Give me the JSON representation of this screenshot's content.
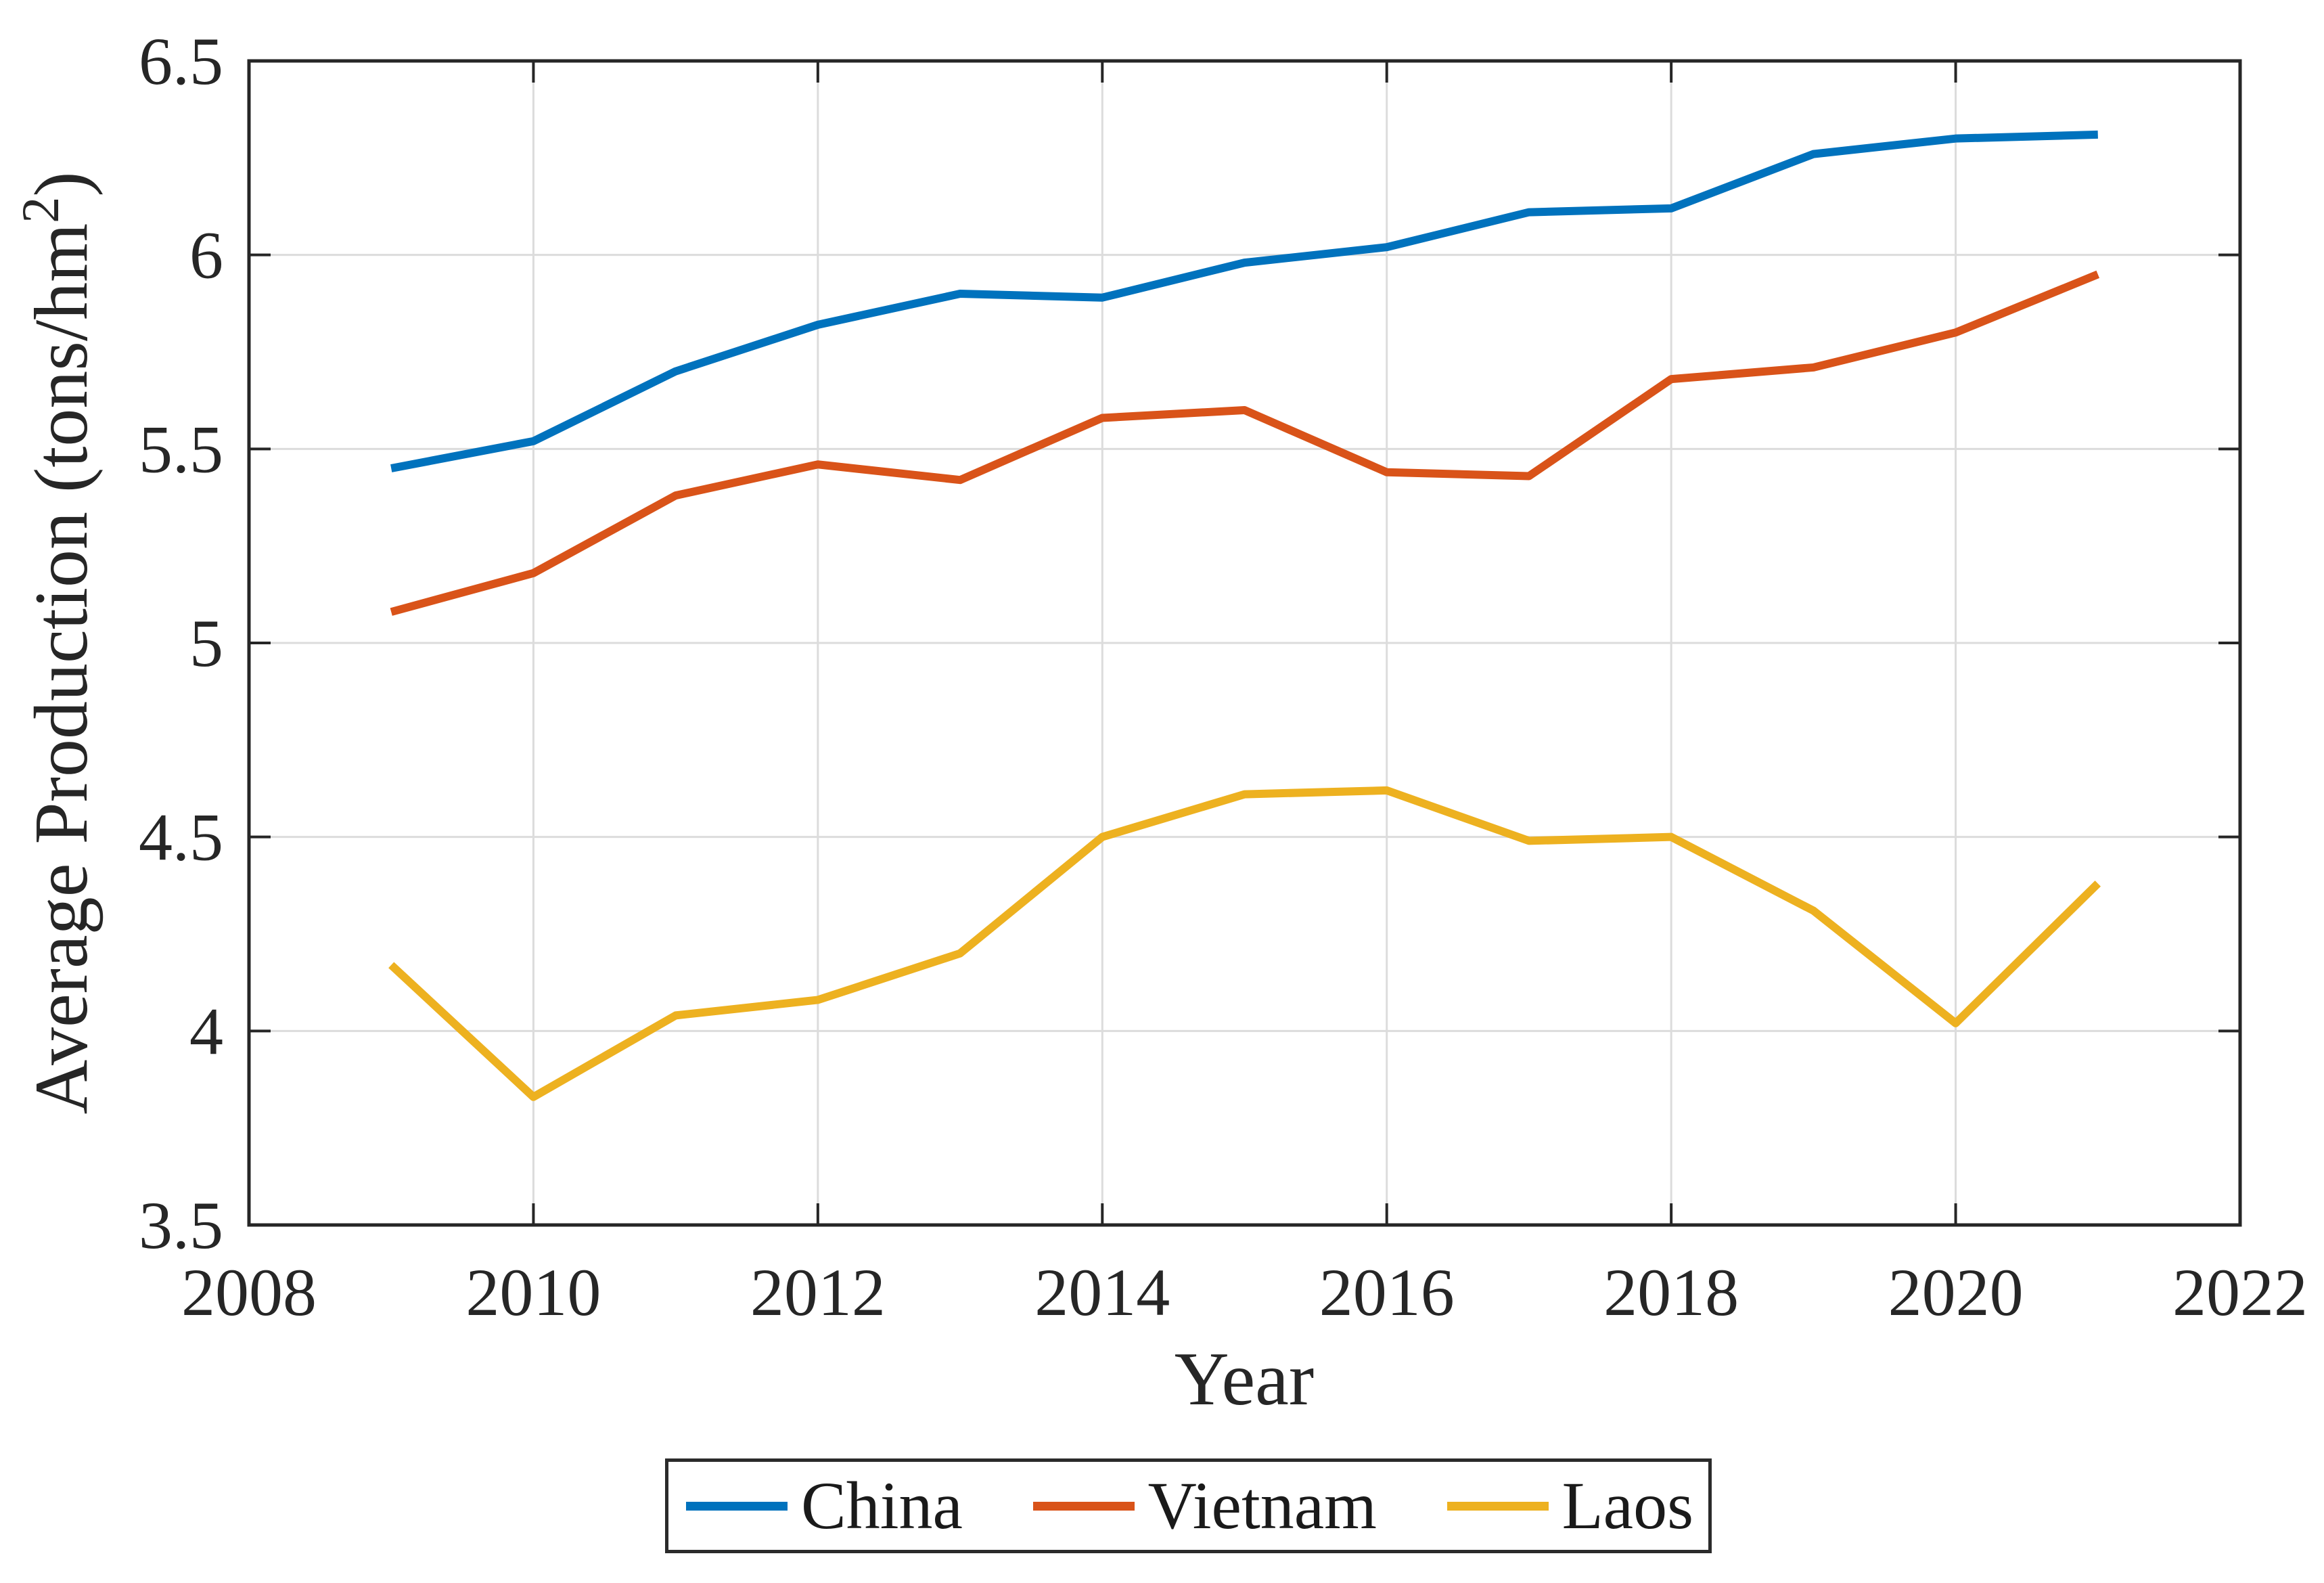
{
  "chart_data": {
    "type": "line",
    "title": "",
    "xlabel": "Year",
    "ylabel_parts": {
      "prefix": "Average Production (tons/hm",
      "sup": "2",
      "suffix": ")"
    },
    "x": [
      2009,
      2010,
      2011,
      2012,
      2013,
      2014,
      2015,
      2016,
      2017,
      2018,
      2019,
      2020,
      2021
    ],
    "series": [
      {
        "name": "China",
        "color": "#0072BD",
        "values": [
          5.45,
          5.52,
          5.7,
          5.82,
          5.9,
          5.89,
          5.98,
          6.02,
          6.11,
          6.12,
          6.26,
          6.3,
          6.31
        ]
      },
      {
        "name": "Vietnam",
        "color": "#D95319",
        "values": [
          5.08,
          5.18,
          5.38,
          5.46,
          5.42,
          5.58,
          5.6,
          5.44,
          5.43,
          5.68,
          5.71,
          5.8,
          5.95
        ]
      },
      {
        "name": "Laos",
        "color": "#EDB120",
        "values": [
          4.17,
          3.83,
          4.04,
          4.08,
          4.2,
          4.5,
          4.61,
          4.62,
          4.49,
          4.5,
          4.31,
          4.02,
          4.38
        ]
      }
    ],
    "xlim": [
      2008,
      2022
    ],
    "ylim": [
      3.5,
      6.5
    ],
    "xticks": [
      2008,
      2010,
      2012,
      2014,
      2016,
      2018,
      2020,
      2022
    ],
    "xtick_labels": [
      "2008",
      "2010",
      "2012",
      "2014",
      "2016",
      "2018",
      "2020",
      "2022"
    ],
    "yticks": [
      3.5,
      4,
      4.5,
      5,
      5.5,
      6,
      6.5
    ],
    "ytick_labels": [
      "3.5",
      "4",
      "4.5",
      "5",
      "5.5",
      "6",
      "6.5"
    ],
    "grid": "on",
    "legend_position": "below",
    "axis_color": "#262626",
    "grid_color": "#dcdcdc"
  }
}
